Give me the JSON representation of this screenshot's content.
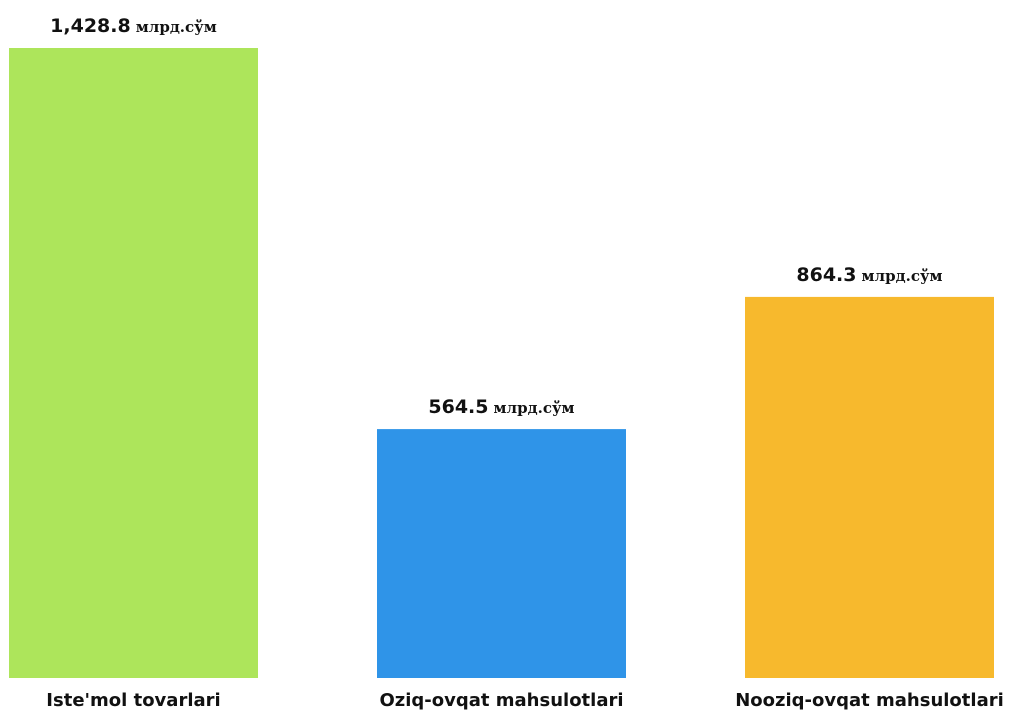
{
  "chart_data": {
    "type": "bar",
    "categories": [
      "Iste'mol tovarlari",
      "Oziq-ovqat mahsulotlari",
      "Nooziq-ovqat mahsulotlari"
    ],
    "values": [
      1428.8,
      564.5,
      864.3
    ],
    "value_labels": [
      "1,428.8",
      "564.5",
      "864.3"
    ],
    "unit": "млрд.сўм",
    "colors": [
      "#ade55b",
      "#2f94e8",
      "#f7b92d"
    ],
    "ylim": [
      0,
      1428.8
    ],
    "grid": false,
    "legend": "none"
  }
}
